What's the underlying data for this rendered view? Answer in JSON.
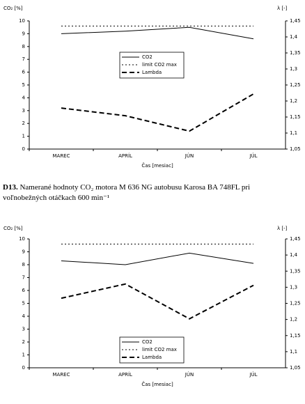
{
  "chart_data": [
    {
      "type": "line",
      "ylabel": "CO₂ [%]",
      "y2label": "λ [-]",
      "xlabel": "Čas [mesiac]",
      "categories": [
        "MAREC",
        "APRÍL",
        "JÚN",
        "JÚL"
      ],
      "ylim": [
        0,
        10
      ],
      "yticks": [
        0,
        1,
        2,
        3,
        4,
        5,
        6,
        7,
        8,
        9,
        10
      ],
      "y2lim": [
        1.05,
        1.45
      ],
      "y2ticks": [
        {
          "value": 1.05,
          "label": "1,05"
        },
        {
          "value": 1.1,
          "label": "1,1"
        },
        {
          "value": 1.15,
          "label": "1,15"
        },
        {
          "value": 1.2,
          "label": "1,2"
        },
        {
          "value": 1.25,
          "label": "1,25"
        },
        {
          "value": 1.3,
          "label": "1,3"
        },
        {
          "value": 1.35,
          "label": "1,35"
        },
        {
          "value": 1.4,
          "label": "1,4"
        },
        {
          "value": 1.45,
          "label": "1,45"
        }
      ],
      "series": [
        {
          "name": "CO2",
          "color": "#000000",
          "dash": "solid",
          "values": [
            9.0,
            9.2,
            9.5,
            8.6
          ]
        },
        {
          "name": "limit CO2 max",
          "color": "#000000",
          "dash": "dotted",
          "values": [
            9.6,
            9.6,
            9.6,
            9.6
          ]
        },
        {
          "name": "Lambda",
          "color": "#000000",
          "dash": "dashed",
          "axis": "y2",
          "values": [
            1.178,
            1.154,
            1.106,
            1.222
          ]
        }
      ]
    },
    {
      "type": "line",
      "ylabel": "CO₂ [%]",
      "y2label": "λ [-]",
      "xlabel": "Čas [mesiac]",
      "categories": [
        "MAREC",
        "APRÍL",
        "JÚN",
        "JÚL"
      ],
      "ylim": [
        0,
        10
      ],
      "yticks": [
        0,
        1,
        2,
        3,
        4,
        5,
        6,
        7,
        8,
        9,
        10
      ],
      "y2lim": [
        1.05,
        1.45
      ],
      "y2ticks": [
        {
          "value": 1.05,
          "label": "1,05"
        },
        {
          "value": 1.1,
          "label": "1,1"
        },
        {
          "value": 1.15,
          "label": "1,15"
        },
        {
          "value": 1.2,
          "label": "1,2"
        },
        {
          "value": 1.25,
          "label": "1,25"
        },
        {
          "value": 1.3,
          "label": "1,3"
        },
        {
          "value": 1.35,
          "label": "1,35"
        },
        {
          "value": 1.4,
          "label": "1,4"
        },
        {
          "value": 1.45,
          "label": "1,45"
        }
      ],
      "series": [
        {
          "name": "CO2",
          "color": "#000000",
          "dash": "solid",
          "values": [
            8.3,
            8.0,
            8.9,
            8.1
          ]
        },
        {
          "name": "limit CO2 max",
          "color": "#000000",
          "dash": "dotted",
          "values": [
            9.6,
            9.6,
            9.6,
            9.6
          ]
        },
        {
          "name": "Lambda",
          "color": "#000000",
          "dash": "dashed",
          "axis": "y2",
          "values": [
            1.266,
            1.31,
            1.202,
            1.306
          ]
        }
      ]
    }
  ],
  "caption": {
    "label": "D13.",
    "text": "Namerané hodnoty CO₂ motora M 636 NG autobusu Karosa BA 748FL pri voľnobežných otáčkach 600 min⁻¹"
  }
}
